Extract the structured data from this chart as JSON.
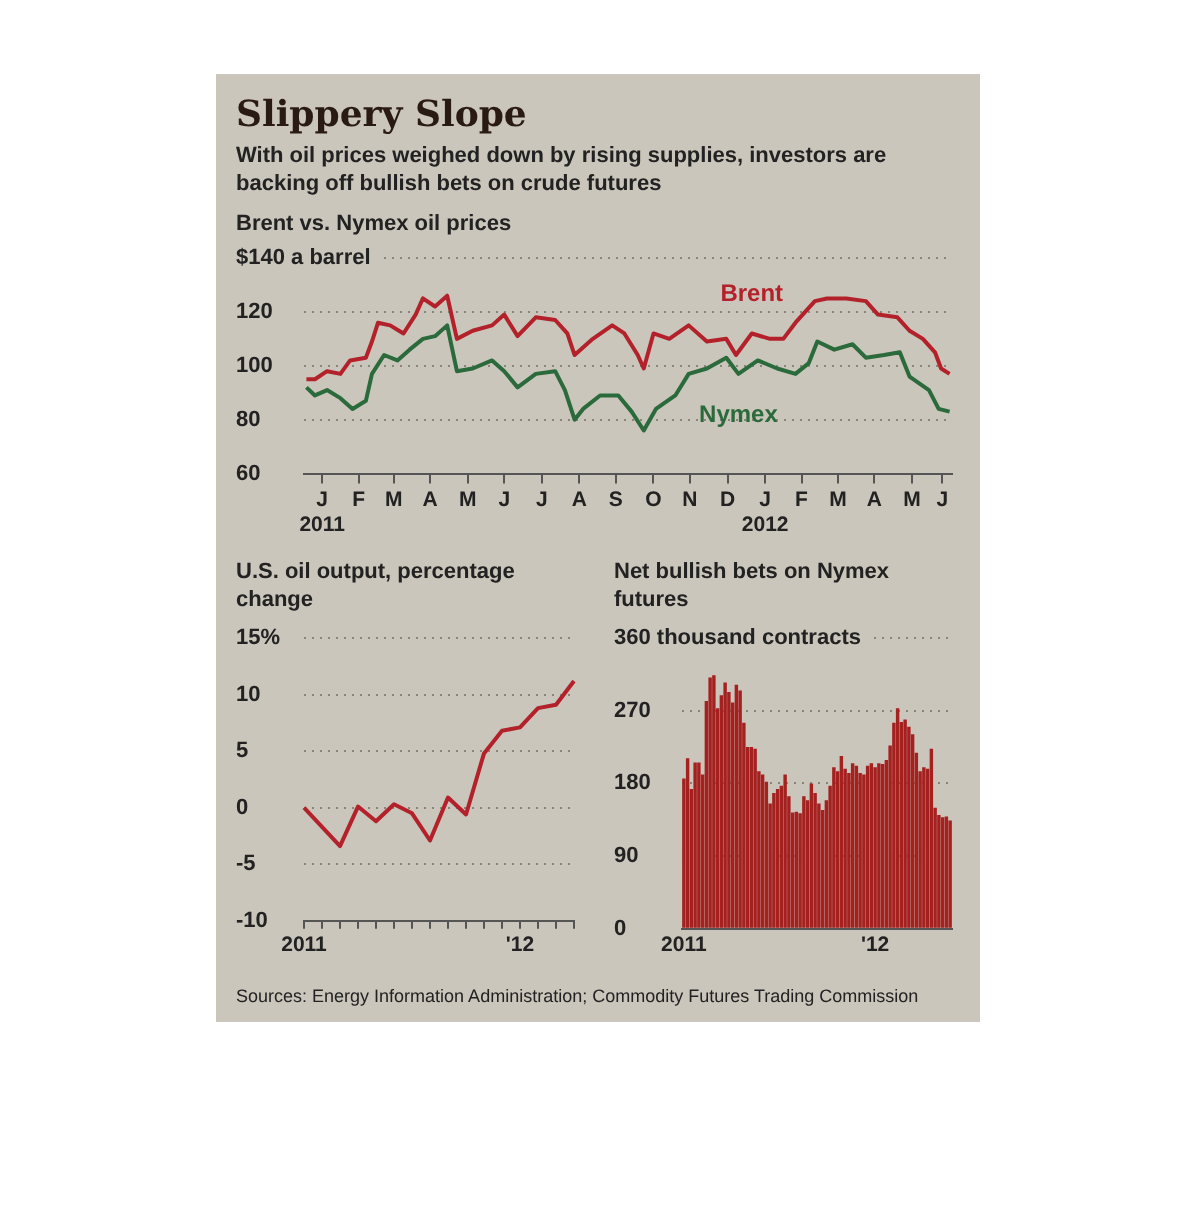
{
  "chart_data": [
    {
      "type": "other",
      "title": "Slippery Slope",
      "subtitle": "With oil prices weighed down by rising supplies, investors are backing off bullish bets on crude futures",
      "annotations": [
        "Sources: Energy Information Administration; Commodity Futures Trading Commission"
      ]
    },
    {
      "type": "line",
      "title": "Brent vs. Nymex oil prices",
      "xlim": [
        "2011-01-01",
        "2012-06-18"
      ],
      "xticks": [
        {
          "value": "2011-01-16",
          "label": "J\n2011"
        },
        {
          "value": "2011-02-15",
          "label": "F"
        },
        {
          "value": "2011-03-16",
          "label": "M"
        },
        {
          "value": "2011-04-15",
          "label": "A"
        },
        {
          "value": "2011-05-16",
          "label": "M"
        },
        {
          "value": "2011-06-15",
          "label": "J"
        },
        {
          "value": "2011-07-16",
          "label": "J"
        },
        {
          "value": "2011-08-16",
          "label": "A"
        },
        {
          "value": "2011-09-15",
          "label": "S"
        },
        {
          "value": "2011-10-16",
          "label": "O"
        },
        {
          "value": "2011-11-15",
          "label": "N"
        },
        {
          "value": "2011-12-16",
          "label": "D"
        },
        {
          "value": "2012-01-16",
          "label": "J\n2012"
        },
        {
          "value": "2012-02-15",
          "label": "F"
        },
        {
          "value": "2012-03-16",
          "label": "M"
        },
        {
          "value": "2012-04-15",
          "label": "A"
        },
        {
          "value": "2012-05-16",
          "label": "M"
        },
        {
          "value": "2012-06-10",
          "label": "J"
        }
      ],
      "ylim": [
        60,
        140
      ],
      "yticks": [
        60,
        80,
        100,
        120,
        {
          "value": 140,
          "label": "$140 a barrel"
        }
      ],
      "grid": "y",
      "legend": false,
      "marker": "none",
      "line_style": "solid",
      "series": [
        {
          "name": "Brent",
          "color": "#b3222b",
          "x": [
            "2011-01-03",
            "2011-01-10",
            "2011-01-20",
            "2011-01-31",
            "2011-02-08",
            "2011-02-21",
            "2011-02-26",
            "2011-03-03",
            "2011-03-13",
            "2011-03-24",
            "2011-04-03",
            "2011-04-09",
            "2011-04-19",
            "2011-04-29",
            "2011-05-07",
            "2011-05-20",
            "2011-06-05",
            "2011-06-15",
            "2011-06-26",
            "2011-07-11",
            "2011-07-27",
            "2011-08-06",
            "2011-08-12",
            "2011-08-27",
            "2011-09-12",
            "2011-09-22",
            "2011-10-03",
            "2011-10-08",
            "2011-10-16",
            "2011-10-29",
            "2011-11-14",
            "2011-11-29",
            "2011-12-15",
            "2011-12-23",
            "2012-01-05",
            "2012-01-20",
            "2012-01-31",
            "2012-02-10",
            "2012-02-26",
            "2012-03-07",
            "2012-03-23",
            "2012-04-08",
            "2012-04-18",
            "2012-05-04",
            "2012-05-14",
            "2012-05-25",
            "2012-06-04",
            "2012-06-09",
            "2012-06-16"
          ],
          "values": [
            95,
            95,
            98,
            97,
            102,
            103,
            109,
            116,
            115,
            112,
            119,
            125,
            122,
            126,
            110,
            113,
            115,
            119,
            111,
            118,
            117,
            112,
            104,
            110,
            115,
            112,
            104,
            99,
            112,
            110,
            115,
            109,
            110,
            104,
            112,
            110,
            110,
            116,
            124,
            125,
            125,
            124,
            119,
            118,
            113,
            110,
            105,
            99,
            97
          ]
        },
        {
          "name": "Nymex",
          "color": "#2b6a3b",
          "x": [
            "2011-01-03",
            "2011-01-10",
            "2011-01-20",
            "2011-01-31",
            "2011-02-10",
            "2011-02-21",
            "2011-02-26",
            "2011-03-08",
            "2011-03-19",
            "2011-03-29",
            "2011-04-09",
            "2011-04-19",
            "2011-04-29",
            "2011-05-07",
            "2011-05-20",
            "2011-06-05",
            "2011-06-15",
            "2011-06-26",
            "2011-07-11",
            "2011-07-27",
            "2011-08-04",
            "2011-08-12",
            "2011-08-19",
            "2011-09-02",
            "2011-09-17",
            "2011-09-28",
            "2011-10-08",
            "2011-10-18",
            "2011-11-03",
            "2011-11-14",
            "2011-11-29",
            "2011-12-15",
            "2011-12-25",
            "2012-01-10",
            "2012-01-26",
            "2012-02-10",
            "2012-02-21",
            "2012-02-28",
            "2012-03-13",
            "2012-03-28",
            "2012-04-08",
            "2012-04-23",
            "2012-05-06",
            "2012-05-14",
            "2012-05-30",
            "2012-06-07",
            "2012-06-16"
          ],
          "values": [
            92,
            89,
            91,
            88,
            84,
            87,
            97,
            104,
            102,
            106,
            110,
            111,
            115,
            98,
            99,
            102,
            98,
            92,
            97,
            98,
            91,
            80,
            84,
            89,
            89,
            83,
            76,
            84,
            89,
            97,
            99,
            103,
            97,
            102,
            99,
            97,
            101,
            109,
            106,
            108,
            103,
            104,
            105,
            96,
            91,
            84,
            83
          ]
        }
      ]
    },
    {
      "type": "line",
      "title": "U.S. oil output, percentage change",
      "categories": [
        "2011",
        null,
        null,
        null,
        null,
        null,
        null,
        null,
        null,
        null,
        null,
        null,
        "'12",
        null,
        null,
        null
      ],
      "ylim": [
        -10,
        15
      ],
      "yticks": [
        -10,
        -5,
        0,
        5,
        10,
        {
          "value": 15,
          "label": "15%"
        }
      ],
      "grid": "y",
      "legend": false,
      "marker": "none",
      "line_style": "solid",
      "color": "#b3222b",
      "values": [
        0,
        -1.7,
        -3.4,
        0.1,
        -1.2,
        0.3,
        -0.5,
        -2.9,
        0.9,
        -0.6,
        4.8,
        6.8,
        7.1,
        8.8,
        9.1,
        11.2
      ]
    },
    {
      "type": "bar",
      "title": "Net bullish bets on Nymex futures",
      "categories": [
        "2011",
        null,
        null,
        null,
        null,
        null,
        null,
        null,
        null,
        null,
        null,
        null,
        null,
        null,
        null,
        null,
        null,
        null,
        null,
        null,
        null,
        null,
        null,
        null,
        null,
        null,
        null,
        null,
        null,
        null,
        null,
        null,
        null,
        null,
        null,
        null,
        null,
        null,
        null,
        null,
        null,
        null,
        null,
        null,
        null,
        null,
        null,
        null,
        null,
        null,
        null,
        "'12",
        null,
        null,
        null,
        null,
        null,
        null,
        null,
        null,
        null,
        null,
        null,
        null,
        null,
        null,
        null,
        null,
        null,
        null,
        null,
        null
      ],
      "ylim": [
        0,
        360
      ],
      "yticks": [
        0,
        90,
        180,
        270,
        {
          "value": 360,
          "label": "360 thousand contracts"
        }
      ],
      "grid": "y",
      "legend": false,
      "color": "#a5211f",
      "values": [
        186,
        211,
        173,
        206,
        206,
        191,
        282,
        311,
        314,
        273,
        289,
        305,
        293,
        280,
        302,
        295,
        255,
        225,
        225,
        223,
        195,
        191,
        182,
        155,
        168,
        173,
        177,
        191,
        164,
        144,
        145,
        143,
        164,
        159,
        180,
        168,
        155,
        147,
        159,
        177,
        200,
        195,
        214,
        198,
        193,
        205,
        202,
        193,
        191,
        202,
        205,
        200,
        205,
        204,
        209,
        227,
        255,
        273,
        256,
        259,
        250,
        241,
        218,
        195,
        200,
        198,
        223,
        150,
        141,
        138,
        139,
        134
      ]
    }
  ]
}
